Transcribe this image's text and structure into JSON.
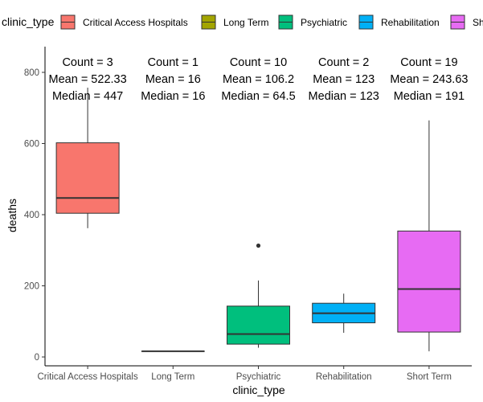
{
  "chart_data": {
    "type": "box",
    "xlabel": "clinic_type",
    "ylabel": "deaths",
    "ylim": [
      0,
      800
    ],
    "yticks": [
      0,
      200,
      400,
      600,
      800
    ],
    "grid": false,
    "legend": {
      "title": "clinic_type",
      "position": "top",
      "entries": [
        {
          "label": "Critical Access Hospitals",
          "color": "#F8766D"
        },
        {
          "label": "Long Term",
          "color": "#A3A500"
        },
        {
          "label": "Psychiatric",
          "color": "#00BF7D"
        },
        {
          "label": "Rehabilitation",
          "color": "#00B0F6"
        },
        {
          "label": "Sh",
          "color": "#E76BF3"
        }
      ]
    },
    "categories": [
      {
        "name": "Critical Access Hospitals",
        "color": "#F8766D",
        "whisker_low": 362,
        "q1": 404,
        "median": 447,
        "q3": 602,
        "whisker_high": 757,
        "outliers": [],
        "annotation": {
          "count": "Count = 3",
          "mean": "Mean = 522.33",
          "median": "Median = 447"
        }
      },
      {
        "name": "Long Term",
        "color": "#A3A500",
        "whisker_low": 16,
        "q1": 16,
        "median": 16,
        "q3": 16,
        "whisker_high": 16,
        "outliers": [],
        "annotation": {
          "count": "Count = 1",
          "mean": "Mean = 16",
          "median": "Median = 16"
        }
      },
      {
        "name": "Psychiatric",
        "color": "#00BF7D",
        "whisker_low": 26,
        "q1": 36,
        "median": 64.5,
        "q3": 143,
        "whisker_high": 215,
        "outliers": [
          313
        ],
        "annotation": {
          "count": "Count = 10",
          "mean": "Mean = 106.2",
          "median": "Median = 64.5"
        }
      },
      {
        "name": "Rehabilitation",
        "color": "#00B0F6",
        "whisker_low": 68,
        "q1": 96,
        "median": 123,
        "q3": 151,
        "whisker_high": 178,
        "outliers": [],
        "annotation": {
          "count": "Count = 2",
          "mean": "Mean = 123",
          "median": "Median = 123"
        }
      },
      {
        "name": "Short Term",
        "color": "#E76BF3",
        "whisker_low": 16,
        "q1": 70,
        "median": 191,
        "q3": 354,
        "whisker_high": 665,
        "outliers": [],
        "annotation": {
          "count": "Count = 19",
          "mean": "Mean = 243.63",
          "median": "Median = 191"
        }
      }
    ]
  }
}
